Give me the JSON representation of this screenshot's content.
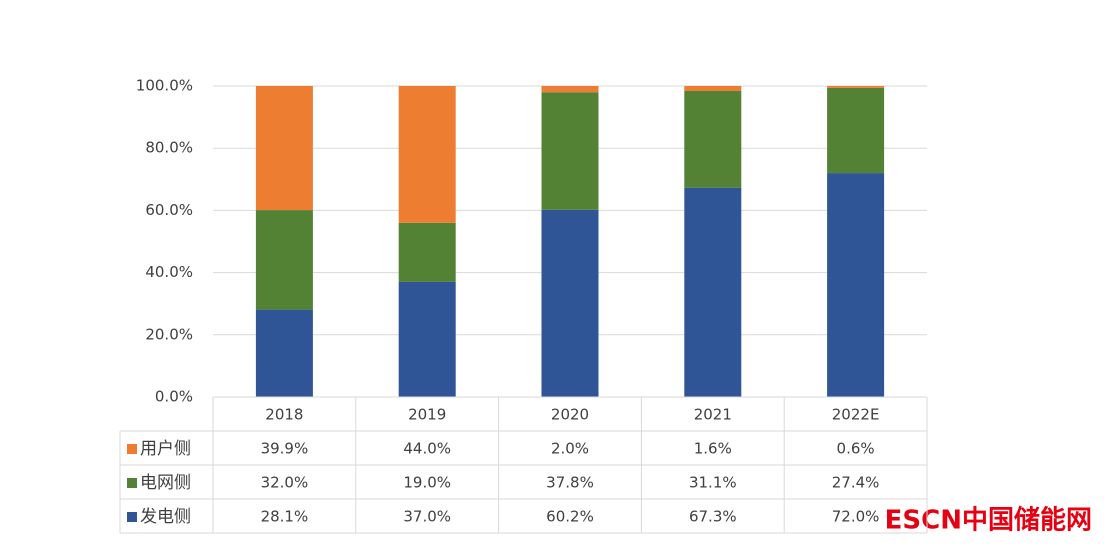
{
  "chart_data": {
    "type": "stacked_bar",
    "categories": [
      "2018",
      "2019",
      "2020",
      "2021",
      "2022E"
    ],
    "series": [
      {
        "name": "发电侧",
        "color": "#2f5597",
        "values": [
          28.1,
          37.0,
          60.2,
          67.3,
          72.0
        ],
        "value_labels": [
          "28.1%",
          "37.0%",
          "60.2%",
          "67.3%",
          "72.0%"
        ]
      },
      {
        "name": "电网侧",
        "color": "#548235",
        "values": [
          32.0,
          19.0,
          37.8,
          31.1,
          27.4
        ],
        "value_labels": [
          "32.0%",
          "19.0%",
          "37.8%",
          "31.1%",
          "27.4%"
        ]
      },
      {
        "name": "用户侧",
        "color": "#ed7d31",
        "values": [
          39.9,
          44.0,
          2.0,
          1.6,
          0.6
        ],
        "value_labels": [
          "39.9%",
          "44.0%",
          "2.0%",
          "1.6%",
          "0.6%"
        ]
      }
    ],
    "ylim": [
      0,
      100
    ],
    "yticks": [
      {
        "value": 0,
        "label": "0.0%"
      },
      {
        "value": 20,
        "label": "20.0%"
      },
      {
        "value": 40,
        "label": "40.0%"
      },
      {
        "value": 60,
        "label": "60.0%"
      },
      {
        "value": 80,
        "label": "80.0%"
      },
      {
        "value": 100,
        "label": "100.0%"
      }
    ],
    "grid": true,
    "watermark": "ESCN中国储能网"
  }
}
